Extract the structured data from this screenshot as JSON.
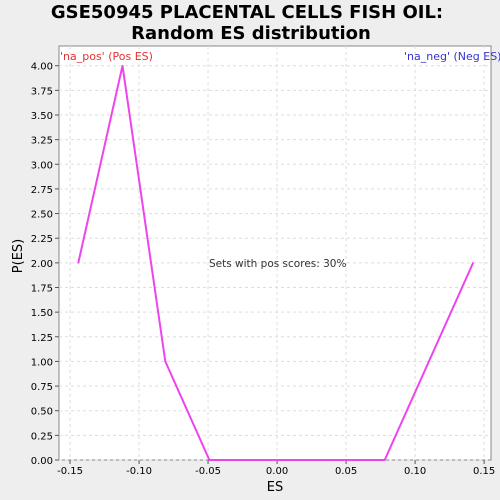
{
  "chart_data": {
    "type": "line",
    "title_line1": "GSE50945 PLACENTAL CELLS FISH OIL:",
    "title_line2": "Random ES distribution",
    "xlabel": "ES",
    "ylabel": "P(ES)",
    "legend_pos": "'na_pos' (Pos ES)",
    "legend_neg": "'na_neg' (Neg ES)",
    "annotation": "Sets with pos scores: 30%",
    "xlim": [
      -0.158,
      0.155
    ],
    "ylim": [
      0,
      4.2
    ],
    "x_ticks": [
      "-0.15",
      "-0.10",
      "-0.05",
      "0.00",
      "0.05",
      "0.10",
      "0.15"
    ],
    "y_ticks": [
      "0.00",
      "0.25",
      "0.50",
      "0.75",
      "1.00",
      "1.25",
      "1.50",
      "1.75",
      "2.00",
      "2.25",
      "2.50",
      "2.75",
      "3.00",
      "3.25",
      "3.50",
      "3.75",
      "4.00"
    ],
    "grid": true,
    "series": [
      {
        "x": [
          -0.144,
          -0.112,
          -0.081,
          -0.049,
          -0.017,
          0.014,
          0.046,
          0.078,
          0.142
        ],
        "y": [
          2.0,
          4.0,
          1.0,
          0.0,
          0.0,
          0.0,
          0.0,
          0.0,
          2.0
        ],
        "color": "#ee44ee"
      }
    ],
    "colors": {
      "pos": "#dd3333",
      "neg": "#3333cc",
      "line": "#ee44ee",
      "grid": "#dddddd",
      "background": "#eeeeee",
      "plot": "#ffffff"
    }
  }
}
